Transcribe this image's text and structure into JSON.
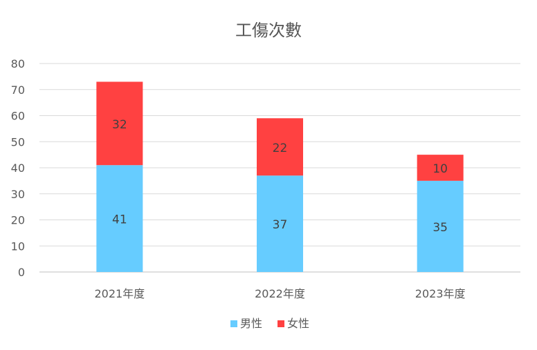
{
  "chart_data": {
    "type": "bar",
    "stacked": true,
    "title": "工傷次數",
    "xlabel": "",
    "ylabel": "",
    "categories": [
      "2021年度",
      "2022年度",
      "2023年度"
    ],
    "series": [
      {
        "name": "男性",
        "values": [
          41,
          37,
          35
        ],
        "color": "#66CCFF"
      },
      {
        "name": "女性",
        "values": [
          32,
          22,
          10
        ],
        "color": "#FF4141"
      }
    ],
    "ylim": [
      0,
      80
    ],
    "yticks": [
      0,
      10,
      20,
      30,
      40,
      50,
      60,
      70,
      80
    ],
    "grid": true,
    "legend_position": "bottom",
    "data_labels": true
  }
}
